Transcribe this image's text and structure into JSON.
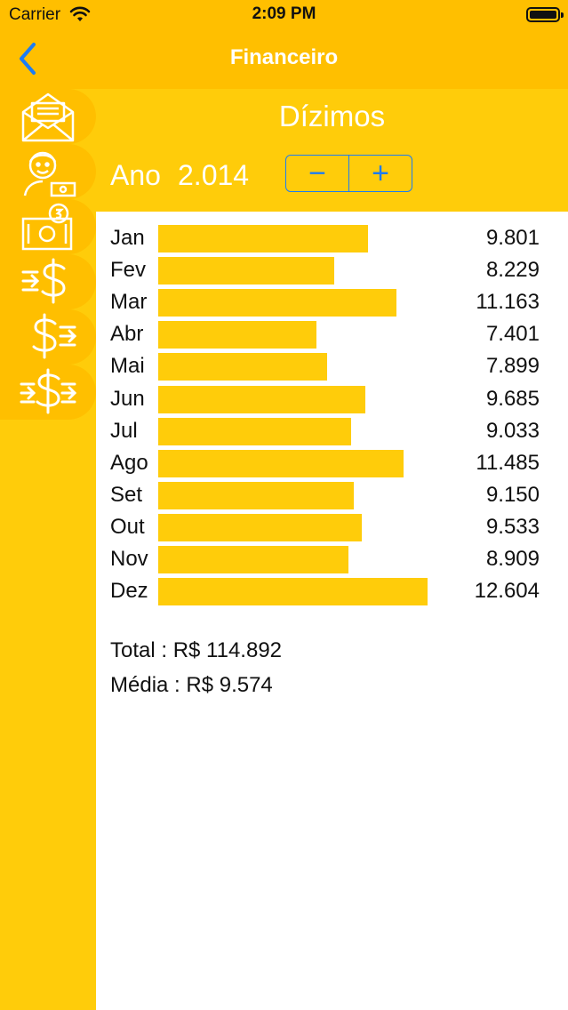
{
  "status_bar": {
    "carrier": "Carrier",
    "time": "2:09 PM"
  },
  "nav": {
    "title": "Financeiro",
    "back_icon": "chevron-left-icon"
  },
  "colors": {
    "header": "#FFBF00",
    "panel": "#FFCC0A",
    "accent": "#1C7CF4",
    "bar": "#FFCC0A"
  },
  "sidebar": {
    "items": [
      {
        "icon": "envelope-icon"
      },
      {
        "icon": "person-money-icon"
      },
      {
        "icon": "cash-coin-icon"
      },
      {
        "icon": "dollar-in-icon"
      },
      {
        "icon": "dollar-out-icon"
      },
      {
        "icon": "dollar-transfer-icon"
      }
    ]
  },
  "panel": {
    "title": "Dízimos",
    "year_label": "Ano",
    "year_value": "2.014",
    "minus_label": "−",
    "plus_label": "+"
  },
  "chart_data": {
    "type": "bar",
    "categories": [
      "Jan",
      "Fev",
      "Mar",
      "Abr",
      "Mai",
      "Jun",
      "Jul",
      "Ago",
      "Set",
      "Out",
      "Nov",
      "Dez"
    ],
    "values": [
      9801,
      8229,
      11163,
      7401,
      7899,
      9685,
      9033,
      11485,
      9150,
      9533,
      8909,
      12604
    ],
    "value_labels": [
      "9.801",
      "8.229",
      "11.163",
      "7.401",
      "7.899",
      "9.685",
      "9.033",
      "11.485",
      "9.150",
      "9.533",
      "8.909",
      "12.604"
    ],
    "orientation": "horizontal",
    "title": "",
    "xlabel": "",
    "ylabel": ""
  },
  "summary": {
    "total": "Total : R$ 114.892",
    "media": "Média : R$ 9.574"
  }
}
